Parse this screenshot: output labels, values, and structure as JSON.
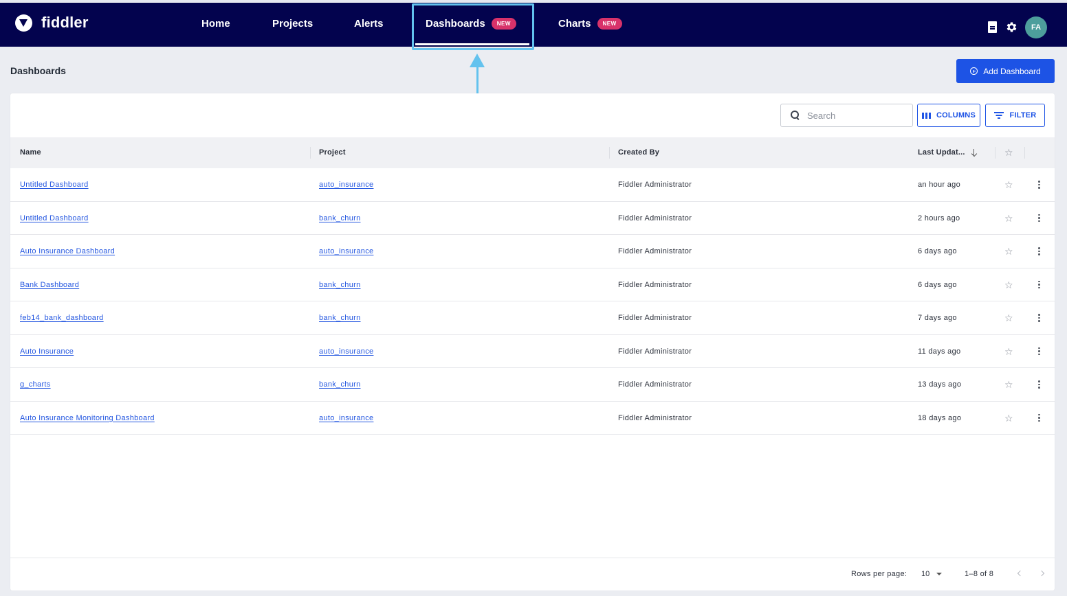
{
  "brand": {
    "name": "fiddler"
  },
  "nav": {
    "items": [
      {
        "label": "Home"
      },
      {
        "label": "Projects"
      },
      {
        "label": "Alerts"
      },
      {
        "label": "Dashboards",
        "badge": "NEW",
        "active": true
      },
      {
        "label": "Charts",
        "badge": "NEW"
      }
    ]
  },
  "user": {
    "initials": "FA"
  },
  "page": {
    "title": "Dashboards",
    "add_button_label": "Add Dashboard"
  },
  "toolbar": {
    "search_placeholder": "Search",
    "columns_label": "COLUMNS",
    "filter_label": "FILTER"
  },
  "table": {
    "columns": [
      "Name",
      "Project",
      "Created By",
      "Last Updat..."
    ],
    "rows": [
      {
        "name": "Untitled Dashboard",
        "project": "auto_insurance",
        "created_by": "Fiddler Administrator",
        "last_updated": "an hour ago"
      },
      {
        "name": "Untitled Dashboard",
        "project": "bank_churn",
        "created_by": "Fiddler Administrator",
        "last_updated": "2 hours ago"
      },
      {
        "name": "Auto Insurance Dashboard",
        "project": "auto_insurance",
        "created_by": "Fiddler Administrator",
        "last_updated": "6 days ago"
      },
      {
        "name": "Bank Dashboard",
        "project": "bank_churn",
        "created_by": "Fiddler Administrator",
        "last_updated": "6 days ago"
      },
      {
        "name": "feb14_bank_dashboard",
        "project": "bank_churn",
        "created_by": "Fiddler Administrator",
        "last_updated": "7 days ago"
      },
      {
        "name": "Auto Insurance",
        "project": "auto_insurance",
        "created_by": "Fiddler Administrator",
        "last_updated": "11 days ago"
      },
      {
        "name": "g_charts",
        "project": "bank_churn",
        "created_by": "Fiddler Administrator",
        "last_updated": "13 days ago"
      },
      {
        "name": "Auto Insurance Monitoring Dashboard",
        "project": "auto_insurance",
        "created_by": "Fiddler Administrator",
        "last_updated": "18 days ago"
      }
    ]
  },
  "pagination": {
    "rows_per_page_label": "Rows per page:",
    "rows_per_page": "10",
    "range": "1–8 of 8"
  },
  "colors": {
    "nav_bg": "#03034e",
    "accent": "#1d53e5",
    "badge": "#d8326a",
    "highlight": "#63c2ee"
  },
  "icons": [
    "fiddler-logo-icon",
    "document-icon",
    "gear-icon",
    "plus-circle-icon",
    "search-icon",
    "columns-icon",
    "filter-icon",
    "sort-down-icon",
    "star-icon",
    "kebab-icon",
    "caret-down-icon",
    "chevron-left-icon",
    "chevron-right-icon"
  ]
}
